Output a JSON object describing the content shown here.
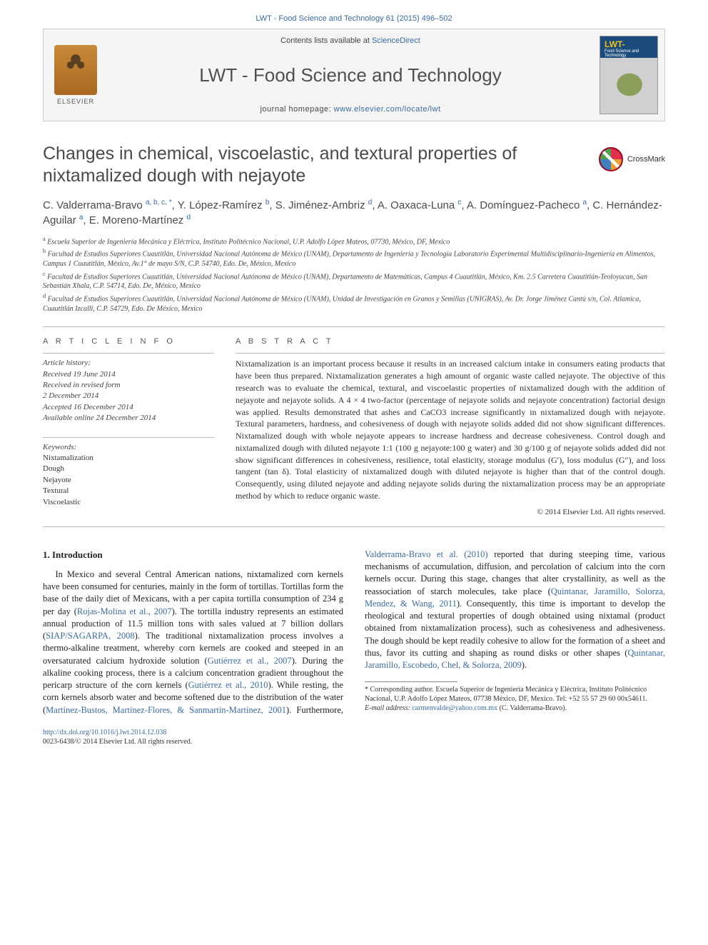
{
  "header": {
    "citation": "LWT - Food Science and Technology 61 (2015) 496–502"
  },
  "banner": {
    "contents_label": "Contents lists available at ",
    "contents_link": "ScienceDirect",
    "journal": "LWT - Food Science and Technology",
    "homepage_label": "journal homepage: ",
    "homepage_url": "www.elsevier.com/locate/lwt",
    "publisher_label": "ELSEVIER",
    "cover_title": "LWT-",
    "cover_subtitle": "Food Science and Technology"
  },
  "crossmark": {
    "label": "CrossMark"
  },
  "title": "Changes in chemical, viscoelastic, and textural properties of nixtamalized dough with nejayote",
  "authors_html": "C. Valderrama-Bravo <sup>a, b, c, *</sup>, Y. López-Ramírez <sup>b</sup>, S. Jiménez-Ambriz <sup>d</sup>, A. Oaxaca-Luna <sup>c</sup>, A. Domínguez-Pacheco <sup>a</sup>, C. Hernández-Aguilar <sup>a</sup>, E. Moreno-Martínez <sup>d</sup>",
  "affiliations": [
    "a Escuela Superior de Ingeniería Mecánica y Eléctrica, Instituto Politécnico Nacional, U.P. Adolfo López Mateos, 07730, México, DF, Mexico",
    "b Facultad de Estudios Superiores Cuautitlán, Universidad Nacional Autónoma de México (UNAM), Departamento de Ingeniería y Tecnología Laboratorio Experimental Multidisciplinario-Ingeniería en Alimentos, Campus 1 Cuautitlán, México, Av.1° de mayo S/N, C.P. 54740, Edo. De, México, Mexico",
    "c Facultad de Estudios Superiores Cuautitlán, Universidad Nacional Autónoma de México (UNAM), Departamento de Matemáticas, Campus 4 Cuautitlán, México, Km. 2.5 Carretera Cuautitlán-Teoloyucan, San Sebastián Xhala, C.P. 54714, Edo. De, México, Mexico",
    "d Facultad de Estudios Superiores Cuautitlán, Universidad Nacional Autónoma de México (UNAM), Unidad de Investigación en Granos y Semillas (UNIGRAS), Av. Dr. Jorge Jiménez Cantú s/n, Col. Atlamica, Cuautitlán Izcalli, C.P. 54729, Edo. De México, Mexico"
  ],
  "article_info": {
    "heading": "A R T I C L E   I N F O",
    "history_label": "Article history:",
    "history": [
      "Received 19 June 2014",
      "Received in revised form",
      "2 December 2014",
      "Accepted 16 December 2014",
      "Available online 24 December 2014"
    ],
    "keywords_label": "Keywords:",
    "keywords": [
      "Nixtamalization",
      "Dough",
      "Nejayote",
      "Textural",
      "Viscoelastic"
    ]
  },
  "abstract": {
    "heading": "A B S T R A C T",
    "text": "Nixtamalization is an important process because it results in an increased calcium intake in consumers eating products that have been thus prepared. Nixtamalization generates a high amount of organic waste called nejayote. The objective of this research was to evaluate the chemical, textural, and viscoelastic properties of nixtamalized dough with the addition of nejayote and nejayote solids. A 4 × 4 two-factor (percentage of nejayote solids and nejayote concentration) factorial design was applied. Results demonstrated that ashes and CaCO3 increase significantly in nixtamalized dough with nejayote. Textural parameters, hardness, and cohesiveness of dough with nejayote solids added did not show significant differences. Nixtamalized dough with whole nejayote appears to increase hardness and decrease cohesiveness. Control dough and nixtamalized dough with diluted nejayote 1:1 (100 g nejayote:100 g water) and 30 g/100 g of nejayote solids added did not show significant differences in cohesiveness, resilience, total elasticity, storage modulus (G′), loss modulus (G″), and loss tangent (tan δ). Total elasticity of nixtamalized dough with diluted nejayote is higher than that of the control dough. Consequently, using diluted nejayote and adding nejayote solids during the nixtamalization process may be an appropriate method by which to reduce organic waste.",
    "copyright": "© 2014 Elsevier Ltd. All rights reserved."
  },
  "body": {
    "section_heading": "1. Introduction",
    "col1_para1": "In Mexico and several Central American nations, nixtamalized corn kernels have been consumed for centuries, mainly in the form of tortillas. Tortillas form the base of the daily diet of Mexicans, with a per capita tortilla consumption of 234 g per day (",
    "cite1": "Rojas-Molina et al., 2007",
    "col1_para1b": "). The tortilla industry represents an estimated annual production of 11.5 million tons with sales valued at 7 billion dollars (",
    "cite2": "SIAP/SAGARPA, 2008",
    "col1_para1c": "). The traditional nixtamalization process involves a thermo-alkaline treatment, whereby corn kernels are cooked and steeped in an oversaturated calcium hydroxide solution",
    "col2_para1a": "(",
    "cite3": "Gutiérrez et al., 2007",
    "col2_para1b": "). During the alkaline cooking process, there is a calcium concentration gradient throughout the pericarp structure of the corn kernels (",
    "cite4": "Gutiérrez et al., 2010",
    "col2_para1c": "). While resting, the corn kernels absorb water and become softened due to the distribution of the water (",
    "cite5": "Martínez-Bustos, Martínez-Flores, & Sanmartín-Martínez, 2001",
    "col2_para1d": "). Furthermore, ",
    "cite6": "Valderrama-Bravo et al. (2010)",
    "col2_para1e": " reported that during steeping time, various mechanisms of accumulation, diffusion, and percolation of calcium into the corn kernels occur. During this stage, changes that alter crystallinity, as well as the reassociation of starch molecules, take place (",
    "cite7": "Quintanar, Jaramillo, Solorza, Mendez, & Wang, 2011",
    "col2_para1f": "). Consequently, this time is important to develop the rheological and textural properties of dough obtained using nixtamal (product obtained from nixtamalization process), such as cohesiveness and adhesiveness. The dough should be kept readily cohesive to allow for the formation of a sheet and thus, favor its cutting and shaping as round disks or other shapes (",
    "cite8": "Quintanar, Jaramillo, Escobedo, Chel, & Solorza, 2009",
    "col2_para1g": ")."
  },
  "footnotes": {
    "corr": "* Corresponding author. Escuela Superior de Ingeniería Mecánica y Eléctrica, Instituto Politécnico Nacional, U.P. Adolfo López Mateos, 07738 México, DF, Mexico. Tel: +52 55 57 29 60 00x54611.",
    "email_label": "E-mail address: ",
    "email": "carmenvalde@yahoo.com.mx",
    "email_tail": " (C. Valderrama-Bravo)."
  },
  "footer": {
    "doi": "http://dx.doi.org/10.1016/j.lwt.2014.12.038",
    "issn": "0023-6438/© 2014 Elsevier Ltd. All rights reserved."
  },
  "colors": {
    "link": "#3a6aa3",
    "text": "#333333",
    "heading": "#4a4a4a",
    "rule": "#bbbbbb"
  }
}
